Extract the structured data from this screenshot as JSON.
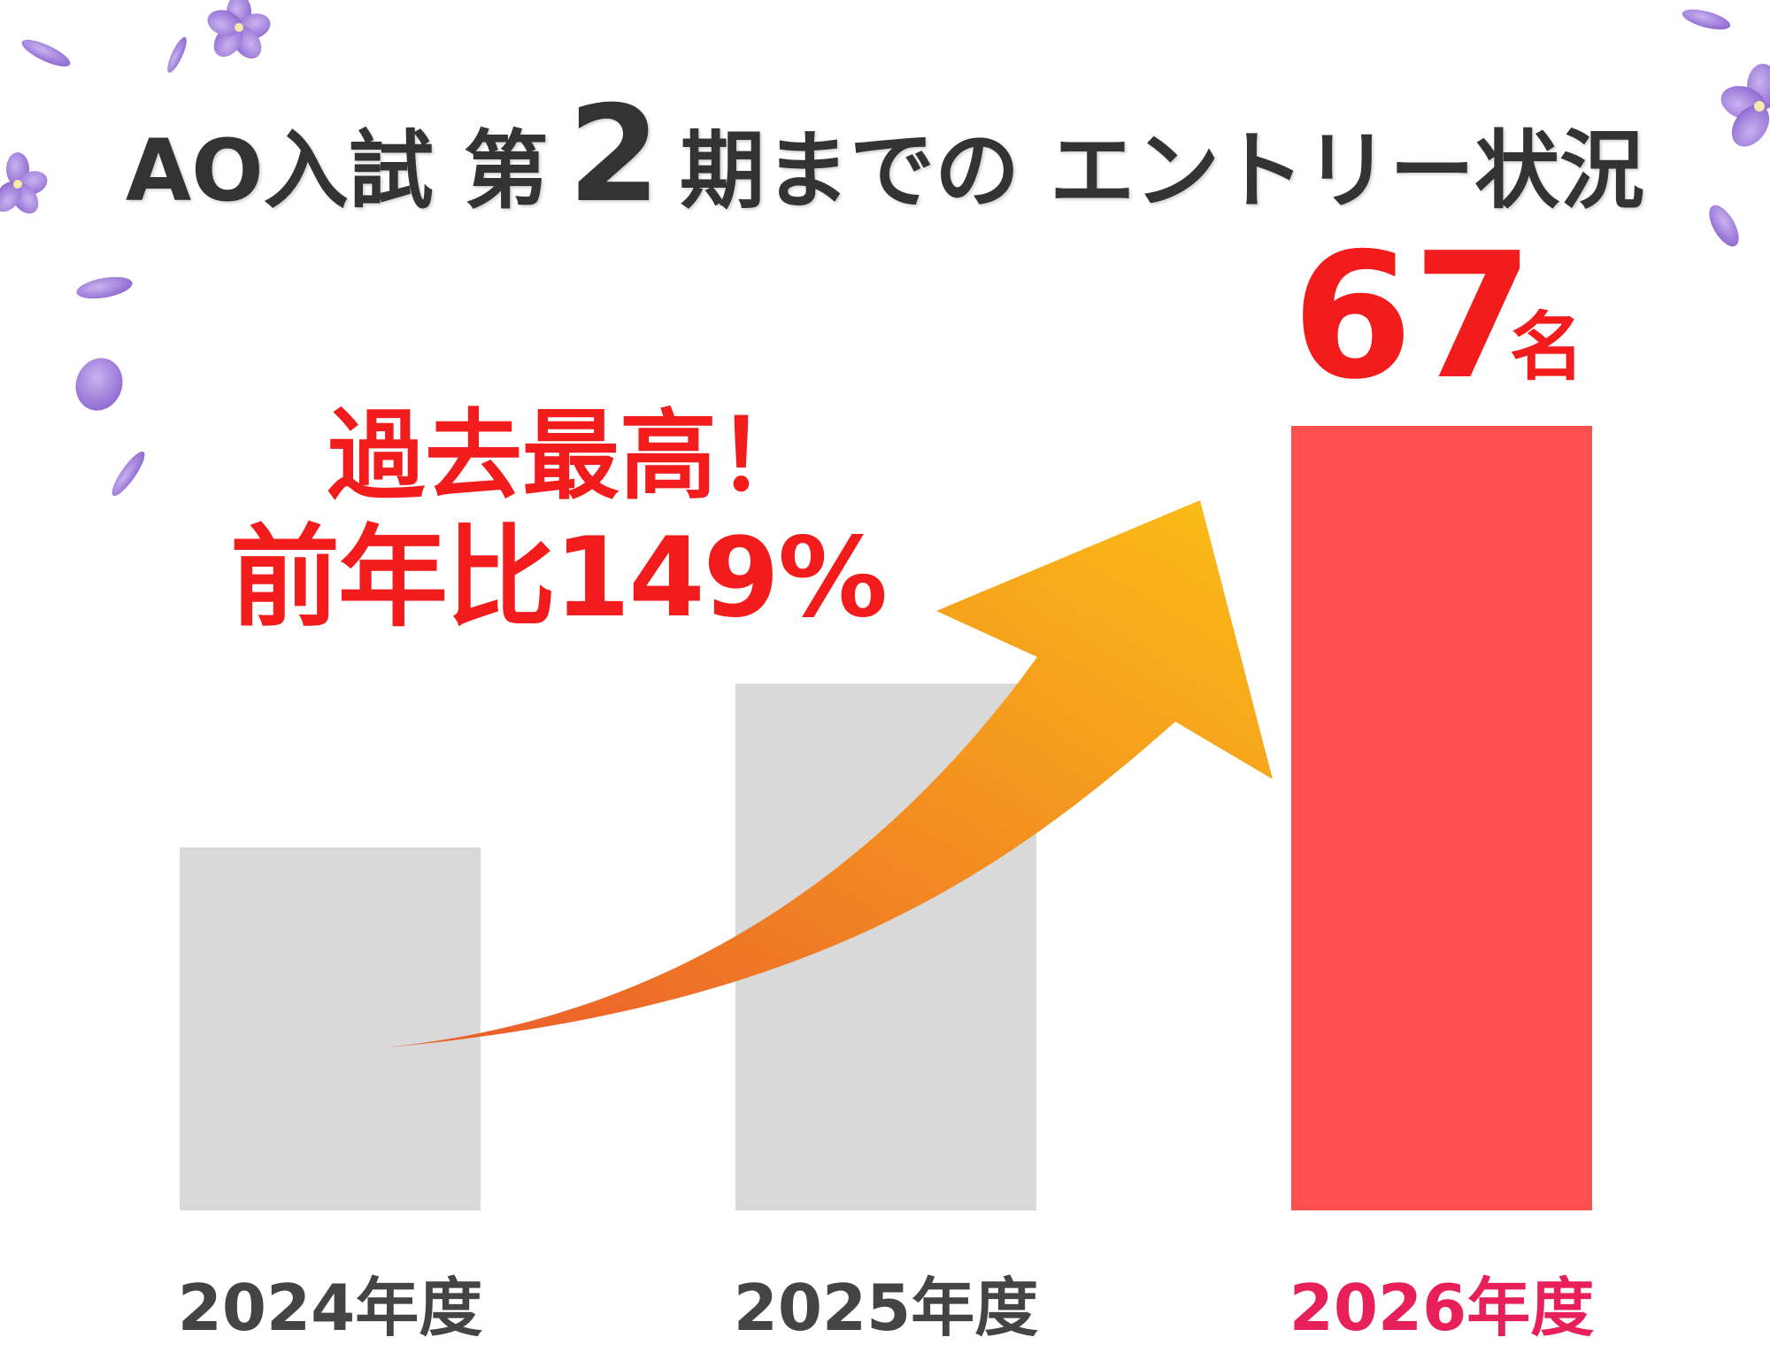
{
  "title": {
    "prefix": "AO入試",
    "ordinal_word": "第",
    "number": "2",
    "suffix_a": "期までの",
    "suffix_b": "エントリー状況"
  },
  "callout": {
    "line1": "過去最高！",
    "line2": "前年比149%"
  },
  "highlight": {
    "value": "67",
    "unit": "名"
  },
  "colors": {
    "title_text": "#333333",
    "accent_red": "#f21c1c",
    "highlight_bar": "#ff5050",
    "past_bar": "#d9d9d9",
    "label_dark": "#444444",
    "label_highlight": "#e8205a",
    "arrow_start": "#ea5a2c",
    "arrow_end": "#fbbf16",
    "petal": "#9b76d8"
  },
  "chart_data": {
    "type": "bar",
    "categories": [
      "2024年度",
      "2025年度",
      "2026年度"
    ],
    "values": [
      31,
      45,
      67
    ],
    "highlight_index": 2,
    "ylim": [
      0,
      67
    ],
    "grid": false,
    "legend": "none",
    "title": "",
    "xlabel": "",
    "ylabel": ""
  }
}
